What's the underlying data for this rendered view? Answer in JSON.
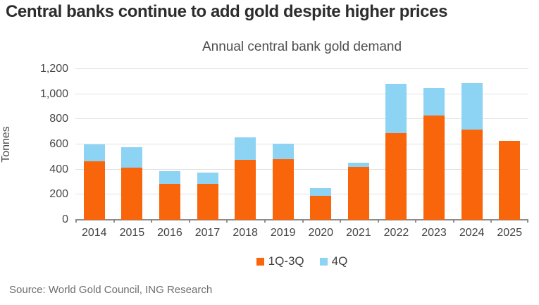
{
  "header": {
    "title": "Central banks continue to add gold despite higher prices"
  },
  "chart": {
    "title": "Annual central bank gold demand",
    "y_axis_label": "Tonnes"
  },
  "legend": {
    "items": [
      {
        "label": "1Q-3Q",
        "color": "#f8650a"
      },
      {
        "label": "4Q",
        "color": "#8dd3f3"
      }
    ]
  },
  "footer": {
    "source": "Source: World Gold Council, ING Research"
  },
  "colors": {
    "orange": "#f8650a",
    "light_blue": "#8dd3f3",
    "gridline": "#e1e1e1",
    "axis": "#8c8c8c"
  },
  "chart_data": {
    "type": "bar",
    "stacked": true,
    "title": "Annual central bank gold demand",
    "xlabel": "",
    "ylabel": "Tonnes",
    "categories": [
      "2014",
      "2015",
      "2016",
      "2017",
      "2018",
      "2019",
      "2020",
      "2021",
      "2022",
      "2023",
      "2024",
      "2025"
    ],
    "series": [
      {
        "name": "1Q-3Q",
        "color": "#f8650a",
        "values": [
          465,
          415,
          285,
          285,
          475,
          485,
          190,
          420,
          690,
          830,
          720,
          630
        ]
      },
      {
        "name": "4Q",
        "color": "#8dd3f3",
        "values": [
          135,
          165,
          100,
          90,
          180,
          120,
          65,
          35,
          390,
          220,
          370,
          0
        ]
      }
    ],
    "totals": [
      600,
      580,
      385,
      375,
      655,
      605,
      255,
      455,
      1080,
      1050,
      1090,
      630
    ],
    "ylim": [
      0,
      1200
    ],
    "ytick_interval": 200,
    "ytick_labels": [
      "0",
      "200",
      "400",
      "600",
      "800",
      "1,000",
      "1,200"
    ],
    "grid": true,
    "legend_position": "bottom"
  }
}
